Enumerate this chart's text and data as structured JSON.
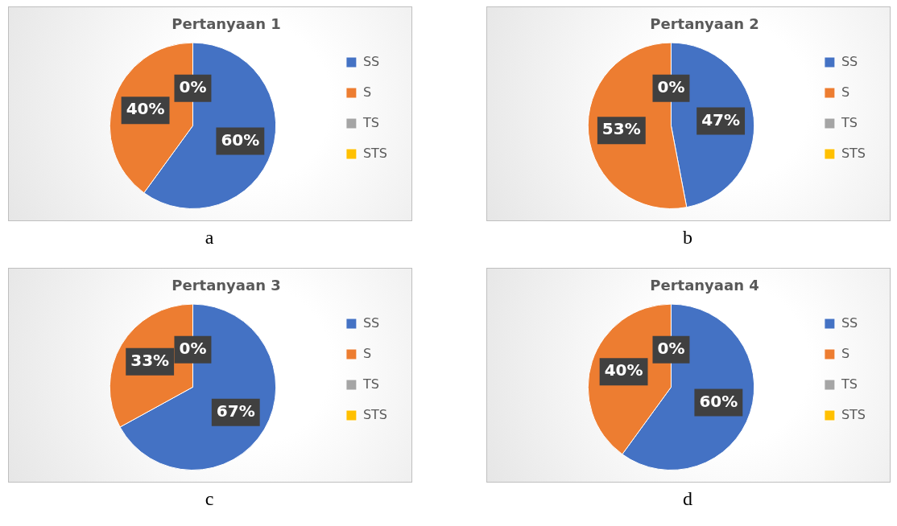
{
  "chart_data": [
    {
      "type": "pie",
      "title": "Pertanyaan 1",
      "categories": [
        "SS",
        "S",
        "TS",
        "STS"
      ],
      "values": [
        60,
        40,
        0,
        0
      ],
      "colors": [
        "#4472c4",
        "#ed7d31",
        "#a5a5a5",
        "#ffc000"
      ],
      "value_labels": [
        "60%",
        "40%",
        "0%",
        null
      ],
      "legend": "right",
      "annotations": [
        "a"
      ]
    },
    {
      "type": "pie",
      "title": "Pertanyaan 2",
      "categories": [
        "SS",
        "S",
        "TS",
        "STS"
      ],
      "values": [
        47,
        53,
        0,
        0
      ],
      "colors": [
        "#4472c4",
        "#ed7d31",
        "#a5a5a5",
        "#ffc000"
      ],
      "value_labels": [
        "47%",
        "53%",
        "0%",
        null
      ],
      "legend": "right",
      "annotations": [
        "b"
      ]
    },
    {
      "type": "pie",
      "title": "Pertanyaan 3",
      "categories": [
        "SS",
        "S",
        "TS",
        "STS"
      ],
      "values": [
        67,
        33,
        0,
        0
      ],
      "colors": [
        "#4472c4",
        "#ed7d31",
        "#a5a5a5",
        "#ffc000"
      ],
      "value_labels": [
        "67%",
        "33%",
        "0%",
        null
      ],
      "legend": "right",
      "annotations": [
        "c"
      ]
    },
    {
      "type": "pie",
      "title": "Pertanyaan 4",
      "categories": [
        "SS",
        "S",
        "TS",
        "STS"
      ],
      "values": [
        60,
        40,
        0,
        0
      ],
      "colors": [
        "#4472c4",
        "#ed7d31",
        "#a5a5a5",
        "#ffc000"
      ],
      "value_labels": [
        "60%",
        "40%",
        "0%",
        null
      ],
      "legend": "right",
      "annotations": [
        "d"
      ]
    }
  ]
}
